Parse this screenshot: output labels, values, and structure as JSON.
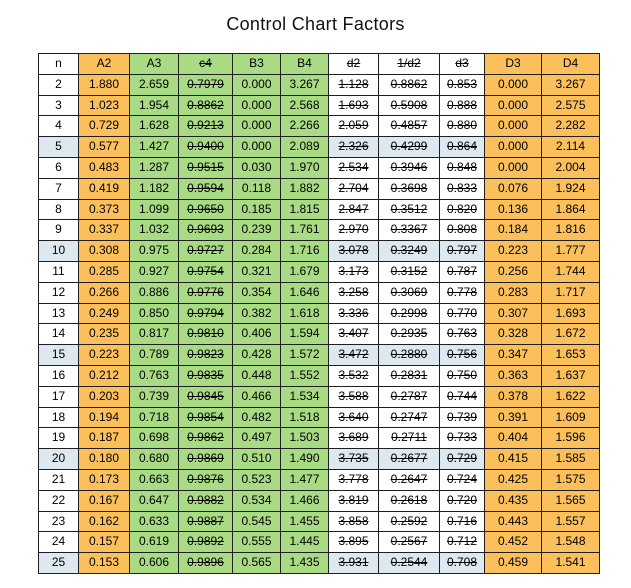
{
  "title": "Control Chart Factors",
  "colors": {
    "orange": "#FBC05C",
    "green": "#A9DA84",
    "highlight_blue": "#DCE9F1",
    "grid_border": "#1F1F1F",
    "text": "#000000"
  },
  "table": {
    "columns": [
      {
        "key": "n",
        "label": "n",
        "fill": "white",
        "strike": false
      },
      {
        "key": "A2",
        "label": "A2",
        "fill": "orange",
        "strike": false
      },
      {
        "key": "A3",
        "label": "A3",
        "fill": "green",
        "strike": false
      },
      {
        "key": "c4",
        "label": "c4",
        "fill": "green",
        "strike": true
      },
      {
        "key": "B3",
        "label": "B3",
        "fill": "green",
        "strike": false
      },
      {
        "key": "B4",
        "label": "B4",
        "fill": "green",
        "strike": false
      },
      {
        "key": "d2",
        "label": "d2",
        "fill": "white",
        "strike": true
      },
      {
        "key": "1/d2",
        "label": "1/d2",
        "fill": "white",
        "strike": true
      },
      {
        "key": "d3",
        "label": "d3",
        "fill": "white",
        "strike": true
      },
      {
        "key": "D3",
        "label": "D3",
        "fill": "orange",
        "strike": false
      },
      {
        "key": "D4",
        "label": "D4",
        "fill": "orange",
        "strike": false
      }
    ],
    "highlight_rows": [
      "5",
      "10",
      "15",
      "20",
      "25"
    ],
    "rows": [
      [
        "2",
        "1.880",
        "2.659",
        "0.7979",
        "0.000",
        "3.267",
        "1.128",
        "0.8862",
        "0.853",
        "0.000",
        "3.267"
      ],
      [
        "3",
        "1.023",
        "1.954",
        "0.8862",
        "0.000",
        "2.568",
        "1.693",
        "0.5908",
        "0.888",
        "0.000",
        "2.575"
      ],
      [
        "4",
        "0.729",
        "1.628",
        "0.9213",
        "0.000",
        "2.266",
        "2.059",
        "0.4857",
        "0.880",
        "0.000",
        "2.282"
      ],
      [
        "5",
        "0.577",
        "1.427",
        "0.9400",
        "0.000",
        "2.089",
        "2.326",
        "0.4299",
        "0.864",
        "0.000",
        "2.114"
      ],
      [
        "6",
        "0.483",
        "1.287",
        "0.9515",
        "0.030",
        "1.970",
        "2.534",
        "0.3946",
        "0.848",
        "0.000",
        "2.004"
      ],
      [
        "7",
        "0.419",
        "1.182",
        "0.9594",
        "0.118",
        "1.882",
        "2.704",
        "0.3698",
        "0.833",
        "0.076",
        "1.924"
      ],
      [
        "8",
        "0.373",
        "1.099",
        "0.9650",
        "0.185",
        "1.815",
        "2.847",
        "0.3512",
        "0.820",
        "0.136",
        "1.864"
      ],
      [
        "9",
        "0.337",
        "1.032",
        "0.9693",
        "0.239",
        "1.761",
        "2.970",
        "0.3367",
        "0.808",
        "0.184",
        "1.816"
      ],
      [
        "10",
        "0.308",
        "0.975",
        "0.9727",
        "0.284",
        "1.716",
        "3.078",
        "0.3249",
        "0.797",
        "0.223",
        "1.777"
      ],
      [
        "11",
        "0.285",
        "0.927",
        "0.9754",
        "0.321",
        "1.679",
        "3.173",
        "0.3152",
        "0.787",
        "0.256",
        "1.744"
      ],
      [
        "12",
        "0.266",
        "0.886",
        "0.9776",
        "0.354",
        "1.646",
        "3.258",
        "0.3069",
        "0.778",
        "0.283",
        "1.717"
      ],
      [
        "13",
        "0.249",
        "0.850",
        "0.9794",
        "0.382",
        "1.618",
        "3.336",
        "0.2998",
        "0.770",
        "0.307",
        "1.693"
      ],
      [
        "14",
        "0.235",
        "0.817",
        "0.9810",
        "0.406",
        "1.594",
        "3.407",
        "0.2935",
        "0.763",
        "0.328",
        "1.672"
      ],
      [
        "15",
        "0.223",
        "0.789",
        "0.9823",
        "0.428",
        "1.572",
        "3.472",
        "0.2880",
        "0.756",
        "0.347",
        "1.653"
      ],
      [
        "16",
        "0.212",
        "0.763",
        "0.9835",
        "0.448",
        "1.552",
        "3.532",
        "0.2831",
        "0.750",
        "0.363",
        "1.637"
      ],
      [
        "17",
        "0.203",
        "0.739",
        "0.9845",
        "0.466",
        "1.534",
        "3.588",
        "0.2787",
        "0.744",
        "0.378",
        "1.622"
      ],
      [
        "18",
        "0.194",
        "0.718",
        "0.9854",
        "0.482",
        "1.518",
        "3.640",
        "0.2747",
        "0.739",
        "0.391",
        "1.609"
      ],
      [
        "19",
        "0.187",
        "0.698",
        "0.9862",
        "0.497",
        "1.503",
        "3.689",
        "0.2711",
        "0.733",
        "0.404",
        "1.596"
      ],
      [
        "20",
        "0.180",
        "0.680",
        "0.9869",
        "0.510",
        "1.490",
        "3.735",
        "0.2677",
        "0.729",
        "0.415",
        "1.585"
      ],
      [
        "21",
        "0.173",
        "0.663",
        "0.9876",
        "0.523",
        "1.477",
        "3.778",
        "0.2647",
        "0.724",
        "0.425",
        "1.575"
      ],
      [
        "22",
        "0.167",
        "0.647",
        "0.9882",
        "0.534",
        "1.466",
        "3.819",
        "0.2618",
        "0.720",
        "0.435",
        "1.565"
      ],
      [
        "23",
        "0.162",
        "0.633",
        "0.9887",
        "0.545",
        "1.455",
        "3.858",
        "0.2592",
        "0.716",
        "0.443",
        "1.557"
      ],
      [
        "24",
        "0.157",
        "0.619",
        "0.9892",
        "0.555",
        "1.445",
        "3.895",
        "0.2567",
        "0.712",
        "0.452",
        "1.548"
      ],
      [
        "25",
        "0.153",
        "0.606",
        "0.9896",
        "0.565",
        "1.435",
        "3.931",
        "0.2544",
        "0.708",
        "0.459",
        "1.541"
      ]
    ]
  }
}
